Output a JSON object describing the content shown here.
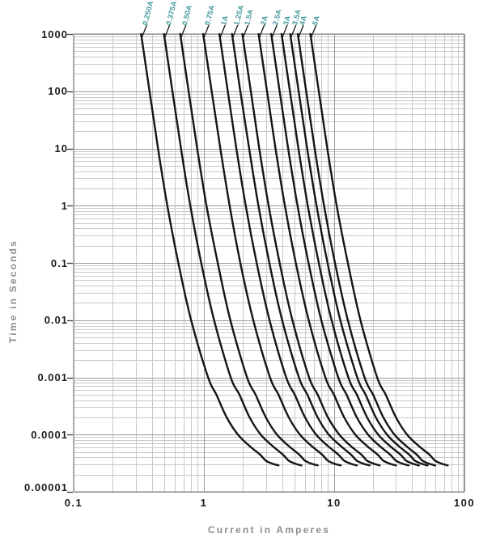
{
  "colors": {
    "background": "#ffffff",
    "curve": "#151515",
    "grid_major": "#9c9c9c",
    "grid_minor": "#c9c9c9",
    "plot_border": "#8f8f8f",
    "tick_text": "#1b1b1b",
    "axis_title_text": "#8d8d8d",
    "rating_label_teal": "#3f969b"
  },
  "axes": {
    "x": {
      "label": "Current in Amperes",
      "scale": "log",
      "min": 0.1,
      "max": 100,
      "tick_values": [
        0.1,
        1,
        10,
        100
      ],
      "tick_labels": [
        "0.1",
        "1",
        "10",
        "100"
      ]
    },
    "y": {
      "label": "Time in Seconds",
      "scale": "log",
      "min": 1e-05,
      "max": 1000,
      "tick_values": [
        1000,
        100,
        10,
        1,
        0.1,
        0.01,
        0.001,
        0.0001,
        1e-05
      ],
      "tick_labels": [
        "1000",
        "100",
        "10",
        "1",
        "0.1",
        "0.01",
        "0.001",
        "0.0001",
        "0.00001"
      ]
    }
  },
  "chart_data": {
    "type": "line",
    "title": "",
    "xlabel": "Current in Amperes",
    "ylabel": "Time in Seconds",
    "x_scale": "log",
    "y_scale": "log",
    "xlim": [
      0.1,
      100
    ],
    "ylim": [
      1e-05,
      1000
    ],
    "grid": true,
    "legend_position": "labels-above-plot",
    "description": "Fuse time-current characteristic curves; each curve labeled with its ampere rating at the top of the plot.",
    "times_s": [
      1000,
      100,
      10,
      1,
      0.1,
      0.01,
      0.001,
      0.0005,
      0.0002,
      0.0001,
      6.3e-05,
      4.5e-05,
      3.5e-05,
      3.1e-05,
      2.9e-05
    ],
    "series": [
      {
        "name": "0.250A",
        "rating_a": 0.25,
        "currents_a": [
          0.33,
          0.383,
          0.445,
          0.525,
          0.638,
          0.8,
          1.08,
          1.25,
          1.5,
          1.83,
          2.25,
          2.7,
          3.0,
          3.38,
          3.75
        ]
      },
      {
        "name": "0.375A",
        "rating_a": 0.375,
        "currents_a": [
          0.495,
          0.574,
          0.668,
          0.788,
          0.956,
          1.2,
          1.61,
          1.88,
          2.25,
          2.74,
          3.38,
          4.05,
          4.5,
          5.06,
          5.63
        ]
      },
      {
        "name": "0.50A",
        "rating_a": 0.5,
        "currents_a": [
          0.66,
          0.765,
          0.89,
          1.05,
          1.28,
          1.6,
          2.15,
          2.5,
          3.0,
          3.65,
          4.5,
          5.4,
          6.0,
          6.75,
          7.5
        ]
      },
      {
        "name": "0.75A",
        "rating_a": 0.75,
        "currents_a": [
          0.99,
          1.15,
          1.34,
          1.58,
          1.91,
          2.4,
          3.23,
          3.75,
          4.5,
          5.48,
          6.75,
          8.1,
          9.0,
          10.1,
          11.3
        ]
      },
      {
        "name": "1A",
        "rating_a": 1,
        "currents_a": [
          1.32,
          1.53,
          1.78,
          2.1,
          2.55,
          3.2,
          4.3,
          5.0,
          6.0,
          7.3,
          9.0,
          10.8,
          12.0,
          13.5,
          15.0
        ]
      },
      {
        "name": "1.25A",
        "rating_a": 1.25,
        "currents_a": [
          1.65,
          1.91,
          2.23,
          2.63,
          3.19,
          4.0,
          5.38,
          6.25,
          7.5,
          9.13,
          11.3,
          13.5,
          15.0,
          16.9,
          18.8
        ]
      },
      {
        "name": "1.5A",
        "rating_a": 1.5,
        "currents_a": [
          1.98,
          2.3,
          2.67,
          3.15,
          3.83,
          4.8,
          6.45,
          7.5,
          9.0,
          11.0,
          13.5,
          16.2,
          18.0,
          20.3,
          22.5
        ]
      },
      {
        "name": "2A",
        "rating_a": 2,
        "currents_a": [
          2.64,
          3.06,
          3.56,
          4.2,
          5.1,
          6.4,
          8.6,
          10.0,
          12.0,
          14.6,
          18.0,
          21.6,
          24.0,
          27.0,
          30.0
        ]
      },
      {
        "name": "2.5A",
        "rating_a": 2.5,
        "currents_a": [
          3.3,
          3.83,
          4.45,
          5.25,
          6.38,
          8.0,
          10.8,
          12.5,
          15.0,
          18.3,
          22.5,
          27.0,
          30.0,
          33.8,
          37.5
        ]
      },
      {
        "name": "3A",
        "rating_a": 3,
        "currents_a": [
          3.96,
          4.59,
          5.34,
          6.3,
          7.65,
          9.6,
          12.9,
          15.0,
          18.0,
          21.9,
          27.0,
          32.4,
          36.0,
          40.5,
          45.0
        ]
      },
      {
        "name": "3.5A",
        "rating_a": 3.5,
        "currents_a": [
          4.62,
          5.36,
          6.23,
          7.35,
          8.93,
          11.2,
          15.1,
          17.5,
          21.0,
          25.6,
          31.5,
          37.8,
          42.0,
          47.3,
          52.5
        ]
      },
      {
        "name": "4A",
        "rating_a": 4,
        "currents_a": [
          5.28,
          6.12,
          7.12,
          8.4,
          10.2,
          12.8,
          17.2,
          20.0,
          24.0,
          29.2,
          36.0,
          43.2,
          48.0,
          54.0,
          60.0
        ]
      },
      {
        "name": "5A",
        "rating_a": 5,
        "currents_a": [
          6.6,
          7.65,
          8.9,
          10.5,
          12.8,
          16.0,
          21.5,
          25.0,
          30.0,
          36.5,
          45.0,
          54.0,
          60.0,
          67.5,
          75.0
        ]
      }
    ]
  }
}
